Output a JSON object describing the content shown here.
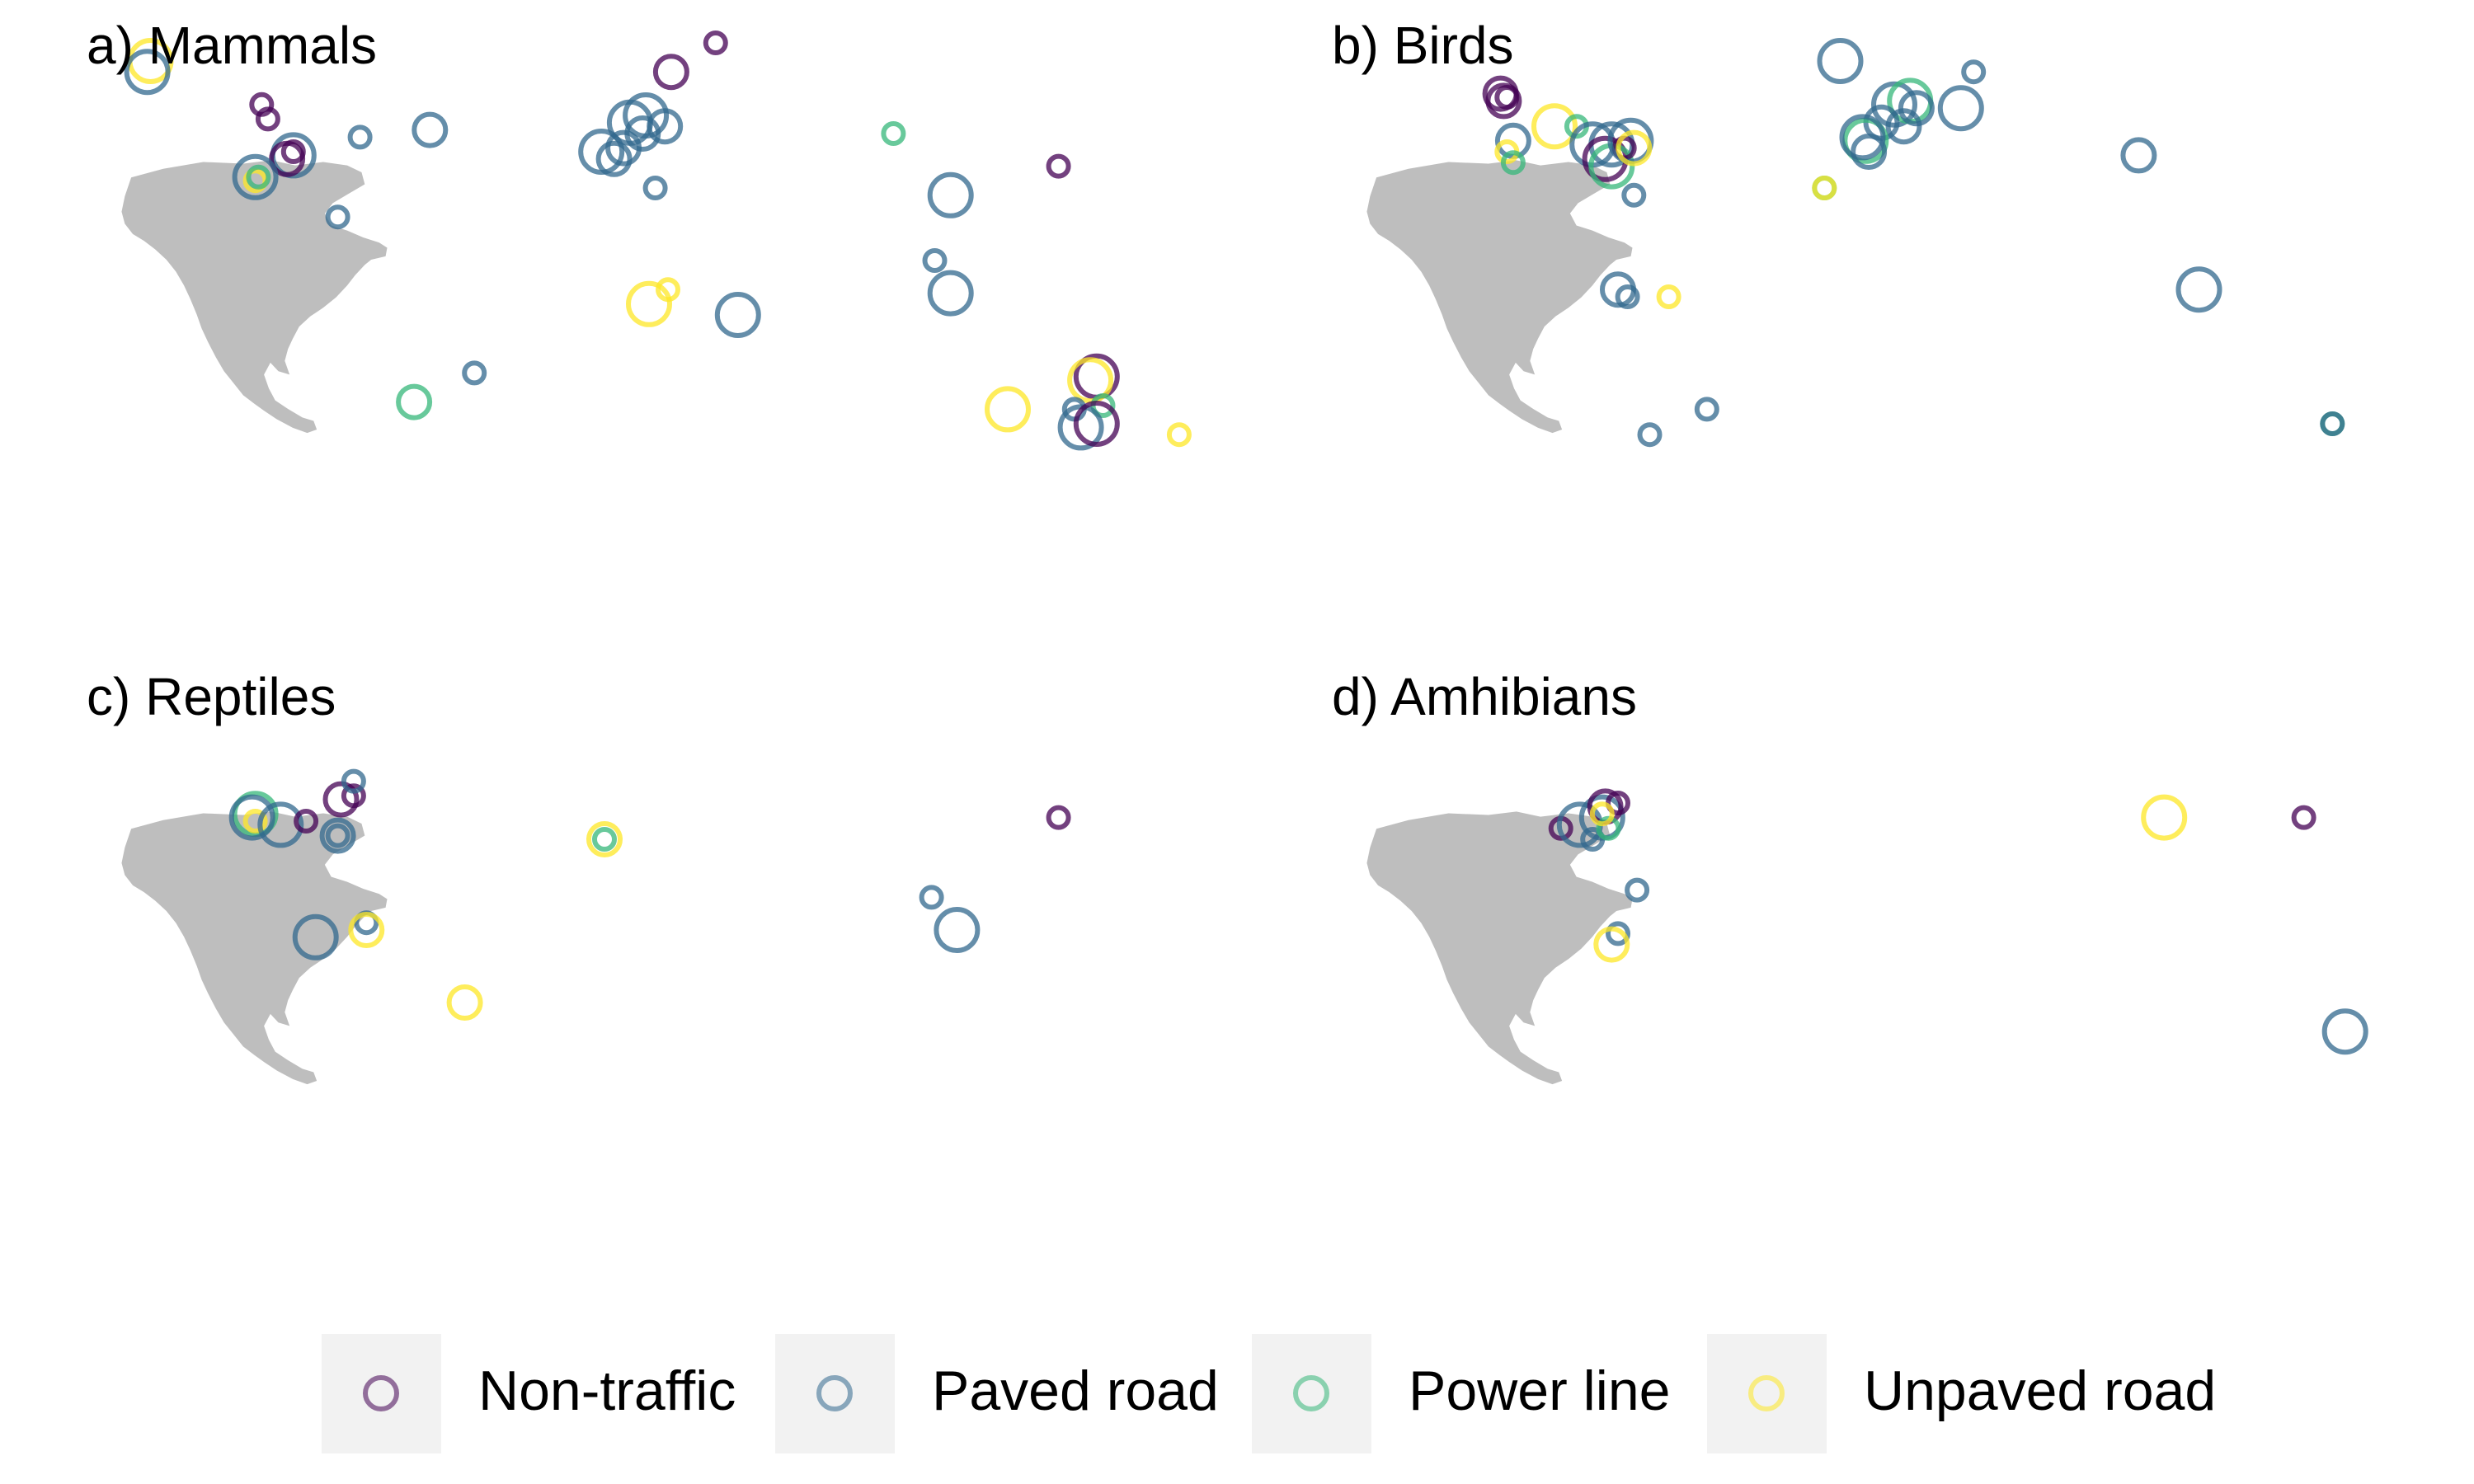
{
  "legend": {
    "items": [
      {
        "label": "Non-traffic",
        "color": "#440154"
      },
      {
        "label": "Paved road",
        "color": "#31688e"
      },
      {
        "label": "Power line",
        "color": "#35b779"
      },
      {
        "label": "Unpaved road",
        "color": "#fde725"
      }
    ]
  },
  "panels": [
    {
      "title": "a) Mammals",
      "points": [
        {
          "lon": -150,
          "lat": 65,
          "cat": "Unpaved road",
          "size": 3
        },
        {
          "lon": -151,
          "lat": 62,
          "cat": "Paved road",
          "size": 3
        },
        {
          "lon": -115,
          "lat": 53,
          "cat": "Non-traffic",
          "size": 1
        },
        {
          "lon": -113,
          "lat": 49,
          "cat": "Non-traffic",
          "size": 1
        },
        {
          "lon": -105,
          "lat": 39,
          "cat": "Paved road",
          "size": 3
        },
        {
          "lon": -107,
          "lat": 38,
          "cat": "Non-traffic",
          "size": 2
        },
        {
          "lon": -105,
          "lat": 40,
          "cat": "Non-traffic",
          "size": 1
        },
        {
          "lon": -117,
          "lat": 33,
          "cat": "Paved road",
          "size": 3
        },
        {
          "lon": -117,
          "lat": 32,
          "cat": "Unpaved road",
          "size": 1
        },
        {
          "lon": -116,
          "lat": 33,
          "cat": "Power line",
          "size": 1
        },
        {
          "lon": -84,
          "lat": 44,
          "cat": "Paved road",
          "size": 1
        },
        {
          "lon": -91,
          "lat": 22,
          "cat": "Paved road",
          "size": 1
        },
        {
          "lon": -62,
          "lat": 46,
          "cat": "Paved road",
          "size": 2
        },
        {
          "lon": -48,
          "lat": -21,
          "cat": "Paved road",
          "size": 1
        },
        {
          "lon": -67,
          "lat": -29,
          "cat": "Power line",
          "size": 2
        },
        {
          "lon": 14,
          "lat": 62,
          "cat": "Non-traffic",
          "size": 2
        },
        {
          "lon": 28,
          "lat": 70,
          "cat": "Non-traffic",
          "size": 1
        },
        {
          "lon": 1,
          "lat": 48,
          "cat": "Paved road",
          "size": 3
        },
        {
          "lon": 6,
          "lat": 50,
          "cat": "Paved road",
          "size": 3
        },
        {
          "lon": 12,
          "lat": 47,
          "cat": "Paved road",
          "size": 2
        },
        {
          "lon": -8,
          "lat": 40,
          "cat": "Paved road",
          "size": 3
        },
        {
          "lon": -4,
          "lat": 38,
          "cat": "Paved road",
          "size": 2
        },
        {
          "lon": -1,
          "lat": 41,
          "cat": "Paved road",
          "size": 2
        },
        {
          "lon": 5,
          "lat": 45,
          "cat": "Paved road",
          "size": 2
        },
        {
          "lon": 9,
          "lat": 30,
          "cat": "Paved road",
          "size": 1
        },
        {
          "lon": 7,
          "lat": -2,
          "cat": "Unpaved road",
          "size": 3
        },
        {
          "lon": 13,
          "lat": 2,
          "cat": "Unpaved road",
          "size": 1
        },
        {
          "lon": 35,
          "lat": -5,
          "cat": "Paved road",
          "size": 3
        },
        {
          "lon": 84,
          "lat": 45,
          "cat": "Power line",
          "size": 1
        },
        {
          "lon": 102,
          "lat": 28,
          "cat": "Paved road",
          "size": 3
        },
        {
          "lon": 97,
          "lat": 10,
          "cat": "Paved road",
          "size": 1
        },
        {
          "lon": 102,
          "lat": 1,
          "cat": "Paved road",
          "size": 3
        },
        {
          "lon": 136,
          "lat": 36,
          "cat": "Non-traffic",
          "size": 1
        },
        {
          "lon": 148,
          "lat": -22,
          "cat": "Non-traffic",
          "size": 3
        },
        {
          "lon": 146,
          "lat": -23,
          "cat": "Unpaved road",
          "size": 3
        },
        {
          "lon": 150,
          "lat": -30,
          "cat": "Power line",
          "size": 1
        },
        {
          "lon": 120,
          "lat": -31,
          "cat": "Unpaved road",
          "size": 3
        },
        {
          "lon": 141,
          "lat": -31,
          "cat": "Paved road",
          "size": 1
        },
        {
          "lon": 143,
          "lat": -36,
          "cat": "Paved road",
          "size": 3
        },
        {
          "lon": 148,
          "lat": -35,
          "cat": "Non-traffic",
          "size": 3
        },
        {
          "lon": 174,
          "lat": -38,
          "cat": "Unpaved road",
          "size": 1
        }
      ]
    },
    {
      "title": "b) Birds",
      "points": [
        {
          "lon": -117,
          "lat": 56,
          "cat": "Non-traffic",
          "size": 2
        },
        {
          "lon": -116,
          "lat": 54,
          "cat": "Non-traffic",
          "size": 2
        },
        {
          "lon": -115,
          "lat": 55,
          "cat": "Non-traffic",
          "size": 1
        },
        {
          "lon": -113,
          "lat": 43,
          "cat": "Paved road",
          "size": 2
        },
        {
          "lon": -115,
          "lat": 40,
          "cat": "Unpaved road",
          "size": 1
        },
        {
          "lon": -113,
          "lat": 37,
          "cat": "Power line",
          "size": 1
        },
        {
          "lon": -100,
          "lat": 47,
          "cat": "Unpaved road",
          "size": 3
        },
        {
          "lon": -93,
          "lat": 47,
          "cat": "Power line",
          "size": 1
        },
        {
          "lon": -88,
          "lat": 42,
          "cat": "Paved road",
          "size": 3
        },
        {
          "lon": -82,
          "lat": 42,
          "cat": "Paved road",
          "size": 3
        },
        {
          "lon": -84,
          "lat": 38,
          "cat": "Non-traffic",
          "size": 3
        },
        {
          "lon": -82,
          "lat": 36,
          "cat": "Power line",
          "size": 3
        },
        {
          "lon": -78,
          "lat": 41,
          "cat": "Non-traffic",
          "size": 1
        },
        {
          "lon": -76,
          "lat": 43,
          "cat": "Paved road",
          "size": 3
        },
        {
          "lon": -75,
          "lat": 41,
          "cat": "Unpaved road",
          "size": 2
        },
        {
          "lon": -75,
          "lat": 28,
          "cat": "Paved road",
          "size": 1
        },
        {
          "lon": -80,
          "lat": 2,
          "cat": "Paved road",
          "size": 2
        },
        {
          "lon": -77,
          "lat": 0,
          "cat": "Paved road",
          "size": 1
        },
        {
          "lon": -64,
          "lat": 0,
          "cat": "Unpaved road",
          "size": 1
        },
        {
          "lon": -70,
          "lat": -38,
          "cat": "Paved road",
          "size": 1
        },
        {
          "lon": -52,
          "lat": -31,
          "cat": "Paved road",
          "size": 1
        },
        {
          "lon": -15,
          "lat": 30,
          "cat": "Power line",
          "size": 1
        },
        {
          "lon": -15,
          "lat": 30,
          "cat": "Unpaved road",
          "size": 1
        },
        {
          "lon": -10,
          "lat": 65,
          "cat": "Paved road",
          "size": 3
        },
        {
          "lon": 7,
          "lat": 53,
          "cat": "Paved road",
          "size": 3
        },
        {
          "lon": 12,
          "lat": 54,
          "cat": "Power line",
          "size": 3
        },
        {
          "lon": 14,
          "lat": 52,
          "cat": "Paved road",
          "size": 2
        },
        {
          "lon": 3,
          "lat": 48,
          "cat": "Paved road",
          "size": 2
        },
        {
          "lon": 10,
          "lat": 47,
          "cat": "Paved road",
          "size": 2
        },
        {
          "lon": -2,
          "lat": 43,
          "cat": "Power line",
          "size": 3
        },
        {
          "lon": -3,
          "lat": 44,
          "cat": "Paved road",
          "size": 3
        },
        {
          "lon": -1,
          "lat": 40,
          "cat": "Paved road",
          "size": 2
        },
        {
          "lon": 28,
          "lat": 52,
          "cat": "Paved road",
          "size": 3
        },
        {
          "lon": 32,
          "lat": 62,
          "cat": "Paved road",
          "size": 1
        },
        {
          "lon": 84,
          "lat": 39,
          "cat": "Paved road",
          "size": 2
        },
        {
          "lon": 103,
          "lat": 2,
          "cat": "Paved road",
          "size": 3
        },
        {
          "lon": 145,
          "lat": -35,
          "cat": "Power line",
          "size": 1
        },
        {
          "lon": 145,
          "lat": -35,
          "cat": "Paved road",
          "size": 1
        }
      ]
    },
    {
      "title": "c) Reptiles",
      "points": [
        {
          "lon": -117,
          "lat": 37,
          "cat": "Power line",
          "size": 3
        },
        {
          "lon": -118,
          "lat": 36,
          "cat": "Paved road",
          "size": 3
        },
        {
          "lon": -117,
          "lat": 35,
          "cat": "Unpaved road",
          "size": 1
        },
        {
          "lon": -109,
          "lat": 34,
          "cat": "Paved road",
          "size": 3
        },
        {
          "lon": -101,
          "lat": 35,
          "cat": "Non-traffic",
          "size": 1
        },
        {
          "lon": -90,
          "lat": 41,
          "cat": "Non-traffic",
          "size": 2
        },
        {
          "lon": -86,
          "lat": 42,
          "cat": "Non-traffic",
          "size": 1
        },
        {
          "lon": -86,
          "lat": 46,
          "cat": "Paved road",
          "size": 1
        },
        {
          "lon": -91,
          "lat": 31,
          "cat": "Paved road",
          "size": 2
        },
        {
          "lon": -91,
          "lat": 31,
          "cat": "Paved road",
          "size": 1
        },
        {
          "lon": -82,
          "lat": 7,
          "cat": "Paved road",
          "size": 1
        },
        {
          "lon": -82,
          "lat": 5,
          "cat": "Unpaved road",
          "size": 2
        },
        {
          "lon": -98,
          "lat": 3,
          "cat": "Paved road",
          "size": 3
        },
        {
          "lon": -51,
          "lat": -15,
          "cat": "Unpaved road",
          "size": 2
        },
        {
          "lon": -7,
          "lat": 30,
          "cat": "Unpaved road",
          "size": 2
        },
        {
          "lon": -7,
          "lat": 30,
          "cat": "Power line",
          "size": 1
        },
        {
          "lon": 96,
          "lat": 14,
          "cat": "Paved road",
          "size": 1
        },
        {
          "lon": 104,
          "lat": 5,
          "cat": "Paved road",
          "size": 3
        },
        {
          "lon": 136,
          "lat": 36,
          "cat": "Non-traffic",
          "size": 1
        }
      ]
    },
    {
      "title": "d) Amhibians",
      "points": [
        {
          "lon": -98,
          "lat": 33,
          "cat": "Non-traffic",
          "size": 1
        },
        {
          "lon": -92,
          "lat": 34,
          "cat": "Paved road",
          "size": 3
        },
        {
          "lon": -85,
          "lat": 36,
          "cat": "Paved road",
          "size": 3
        },
        {
          "lon": -88,
          "lat": 30,
          "cat": "Paved road",
          "size": 1
        },
        {
          "lon": -84,
          "lat": 39,
          "cat": "Non-traffic",
          "size": 2
        },
        {
          "lon": -80,
          "lat": 40,
          "cat": "Non-traffic",
          "size": 1
        },
        {
          "lon": -83,
          "lat": 33,
          "cat": "Power line",
          "size": 1
        },
        {
          "lon": -85,
          "lat": 37,
          "cat": "Unpaved road",
          "size": 1
        },
        {
          "lon": -74,
          "lat": 16,
          "cat": "Paved road",
          "size": 1
        },
        {
          "lon": -80,
          "lat": 4,
          "cat": "Paved road",
          "size": 1
        },
        {
          "lon": -82,
          "lat": 1,
          "cat": "Unpaved road",
          "size": 2
        },
        {
          "lon": 92,
          "lat": 36,
          "cat": "Unpaved road",
          "size": 3
        },
        {
          "lon": 136,
          "lat": 36,
          "cat": "Non-traffic",
          "size": 1
        },
        {
          "lon": 149,
          "lat": -23,
          "cat": "Paved road",
          "size": 3
        }
      ]
    }
  ]
}
